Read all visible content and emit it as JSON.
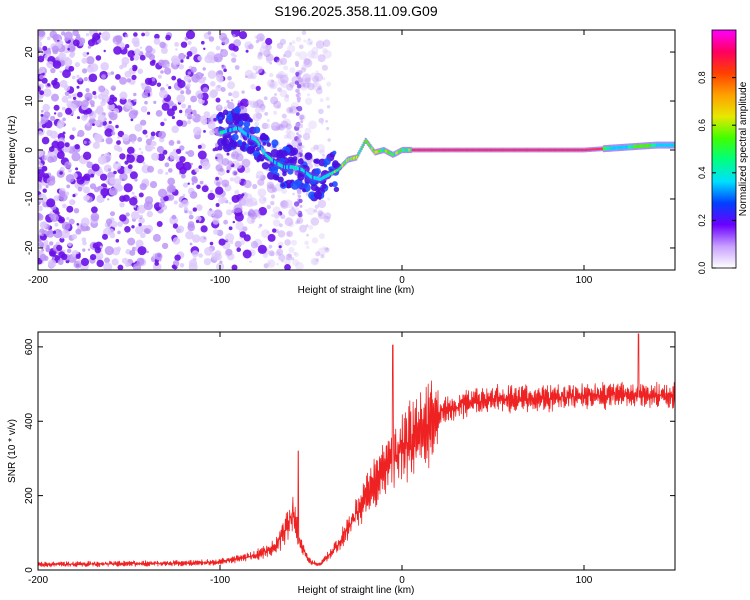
{
  "title": "S196.2025.358.11.09.G09",
  "colors": {
    "snr_line": "#ee2222",
    "cbar_stops": [
      "#ff00ff",
      "#ff0060",
      "#ff4000",
      "#ffa000",
      "#e8e800",
      "#40ff00",
      "#00ff80",
      "#00e0ff",
      "#0040ff",
      "#6a00ff",
      "#c8a0ff",
      "#ffffff"
    ]
  },
  "chart_data": [
    {
      "type": "heatmap",
      "name": "spectrogram",
      "xlabel": "Height of straight line (km)",
      "ylabel": "Frequency (Hz)",
      "xlim": [
        -200,
        150
      ],
      "ylim": [
        -24.5,
        24.5
      ],
      "xticks": [
        -200,
        -100,
        0,
        100
      ],
      "yticks": [
        -20,
        -10,
        0,
        10,
        20
      ],
      "ridge": {
        "x": [
          -100,
          -95,
          -90,
          -85,
          -80,
          -75,
          -70,
          -65,
          -60,
          -55,
          -50,
          -45,
          -40,
          -35,
          -30,
          -25,
          -20,
          -15,
          -10,
          -5,
          0,
          5,
          10,
          50,
          100,
          120,
          140,
          150
        ],
        "freq": [
          3.5,
          4,
          4.5,
          3,
          2,
          -1,
          -2.5,
          -3.5,
          -3.5,
          -4,
          -5.5,
          -6,
          -5,
          -4,
          -2,
          -1.5,
          2,
          -0.5,
          0,
          -1,
          0,
          0,
          0,
          0,
          0,
          0.5,
          1,
          1
        ]
      },
      "colorbar": {
        "label": "Normalized spectral amplitude",
        "range": [
          0,
          1
        ],
        "ticks": [
          "0.0",
          "0.2",
          "0.4",
          "0.6",
          "0.8"
        ]
      }
    },
    {
      "type": "line",
      "name": "snr",
      "xlabel": "Height of straight line (km)",
      "ylabel": "SNR (10 * v/v)",
      "xlim": [
        -200,
        150
      ],
      "ylim": [
        0,
        640
      ],
      "xticks": [
        -200,
        -100,
        0,
        100
      ],
      "yticks": [
        0,
        200,
        400,
        600
      ],
      "envelope": {
        "x": [
          -200,
          -120,
          -100,
          -90,
          -80,
          -70,
          -65,
          -60,
          -55,
          -50,
          -45,
          -40,
          -35,
          -30,
          -25,
          -20,
          -15,
          -10,
          -5,
          0,
          5,
          10,
          15,
          20,
          25,
          30,
          40,
          50,
          70,
          100,
          130,
          150
        ],
        "y": [
          15,
          18,
          22,
          30,
          40,
          60,
          100,
          150,
          60,
          20,
          15,
          40,
          70,
          110,
          150,
          200,
          230,
          270,
          300,
          330,
          350,
          370,
          390,
          420,
          430,
          440,
          450,
          460,
          460,
          470,
          470,
          470
        ]
      },
      "spikes": [
        {
          "x": -57,
          "y": 320
        },
        {
          "x": -5,
          "y": 605
        },
        {
          "x": 130,
          "y": 635
        }
      ]
    }
  ]
}
